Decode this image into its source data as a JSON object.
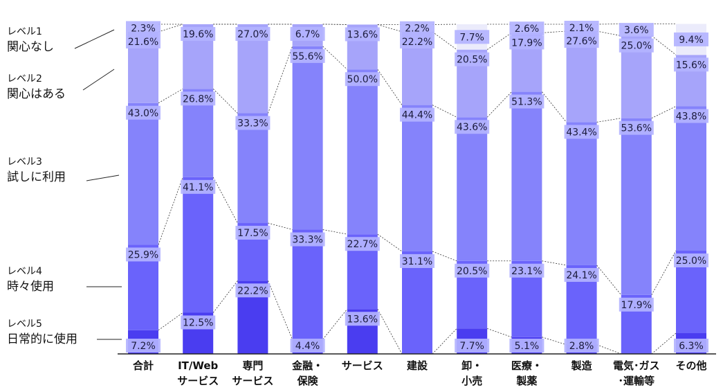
{
  "chart_data": {
    "type": "bar",
    "stacked": true,
    "orientation": "vertical",
    "normalized_percent": true,
    "categories": [
      [
        "合計"
      ],
      [
        "IT/Web",
        "サービス"
      ],
      [
        "専門",
        "サービス"
      ],
      [
        "金融・",
        "保険"
      ],
      [
        "サービス"
      ],
      [
        "建設"
      ],
      [
        "卸・",
        "小売"
      ],
      [
        "医療・",
        "製薬"
      ],
      [
        "製造"
      ],
      [
        "電気･ガス",
        "･運輸等"
      ],
      [
        "その他"
      ]
    ],
    "series": [
      {
        "name": [
          "レベル5",
          "日常的に使用"
        ],
        "color": "#4a3df0",
        "values": [
          7.2,
          12.5,
          22.2,
          4.4,
          13.6,
          0,
          7.7,
          5.1,
          2.8,
          0,
          6.3
        ]
      },
      {
        "name": [
          "レベル4",
          "時々使用"
        ],
        "color": "#6a63fb",
        "values": [
          25.9,
          41.1,
          17.5,
          33.3,
          22.7,
          31.1,
          20.5,
          23.1,
          24.1,
          17.9,
          25.0
        ]
      },
      {
        "name": [
          "レベル3",
          "試しに利用"
        ],
        "color": "#8583fb",
        "values": [
          43.0,
          26.8,
          33.3,
          55.6,
          50.0,
          44.4,
          43.6,
          51.3,
          43.4,
          53.6,
          43.8
        ]
      },
      {
        "name": [
          "レベル2",
          "関心はある"
        ],
        "color": "#a6a4fa",
        "values": [
          21.6,
          19.6,
          27.0,
          6.7,
          13.6,
          22.2,
          20.5,
          17.9,
          27.6,
          25.0,
          15.6
        ]
      },
      {
        "name": [
          "レベル1",
          "関心なし"
        ],
        "color": "#ebebfb",
        "values": [
          2.3,
          0,
          0,
          0,
          0,
          2.2,
          7.7,
          2.6,
          2.1,
          3.6,
          9.4
        ]
      }
    ],
    "label_format": "{v}%",
    "ylim": [
      0,
      100
    ],
    "connector_lines": true,
    "legend_placement": "left",
    "grid": false
  }
}
